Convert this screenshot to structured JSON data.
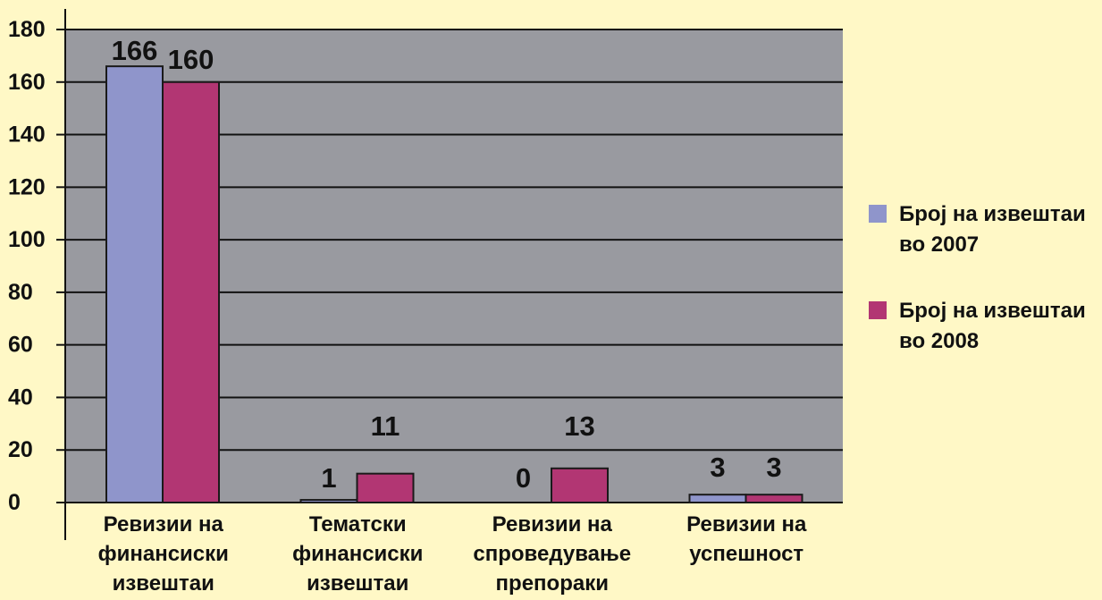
{
  "chart_data": {
    "type": "bar",
    "categories": [
      [
        "Ревизии на",
        "финансиски",
        "извештаи"
      ],
      [
        "Тематски",
        "финансиски",
        "извештаи"
      ],
      [
        "Ревизии на",
        "спроведување",
        "препораки"
      ],
      [
        "Ревизии на",
        "успешност"
      ]
    ],
    "series": [
      {
        "name": [
          "Број на извештаи",
          "во 2007"
        ],
        "values": [
          166,
          1,
          0,
          3
        ],
        "color": "#8f95cb"
      },
      {
        "name": [
          "Број на извештаи",
          "во 2008"
        ],
        "values": [
          160,
          11,
          13,
          3
        ],
        "color": "#b23673"
      }
    ],
    "ylim": [
      0,
      180
    ],
    "yticks": [
      0,
      20,
      40,
      60,
      80,
      100,
      120,
      140,
      160,
      180
    ],
    "grid": true,
    "legend_position": "right",
    "title": "",
    "xlabel": "",
    "ylabel": "",
    "colors": {
      "background": "#fff8c6",
      "plot_area": "#999aa0",
      "axis": "#111111",
      "gridline": "#111111"
    }
  }
}
